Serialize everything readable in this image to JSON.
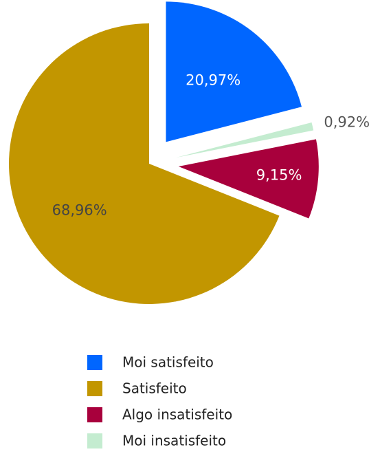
{
  "chart_data": {
    "type": "pie",
    "categories": [
      "Moi satisfeito",
      "Satisfeito",
      "Algo insatisfeito",
      "Moi insatisfeito"
    ],
    "values": [
      20.97,
      68.96,
      9.15,
      0.92
    ],
    "value_labels": [
      "20,97%",
      "68,96%",
      "9,15%",
      "0,92%"
    ],
    "colors": [
      "#0066ff",
      "#c29600",
      "#a8003c",
      "#c4ecd0"
    ],
    "legend": "bottom"
  }
}
